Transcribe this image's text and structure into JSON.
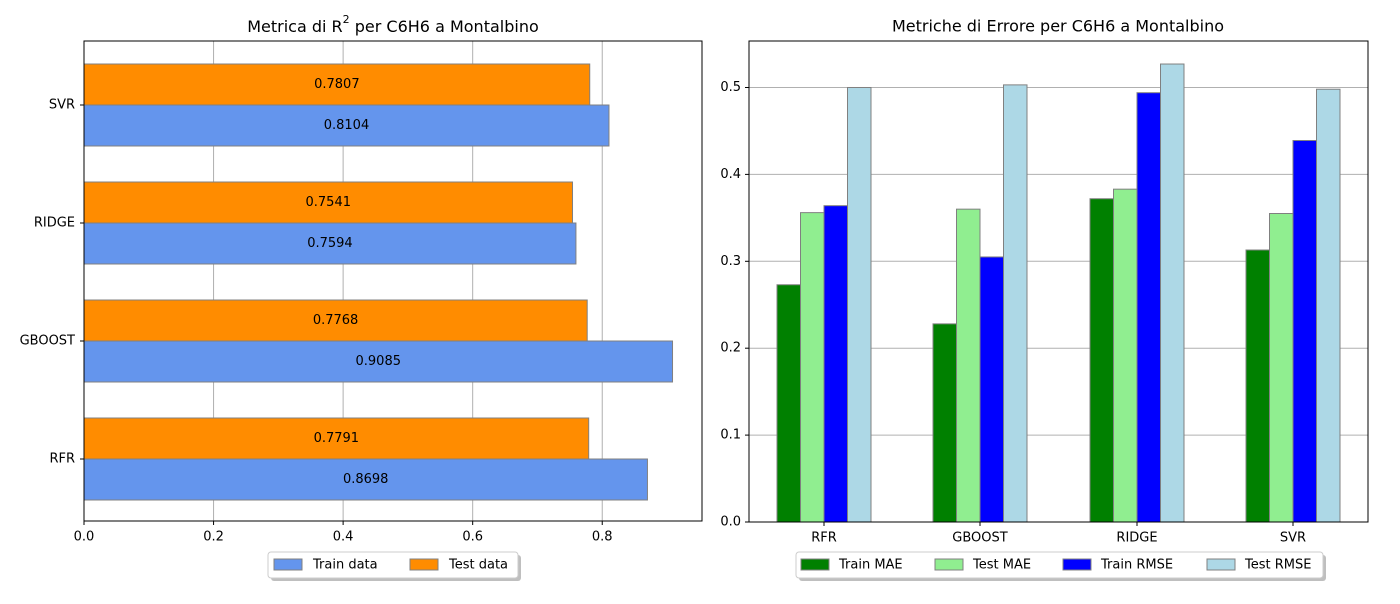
{
  "chart_data": [
    {
      "type": "bar",
      "orientation": "horizontal",
      "title": "Metrica di R² per C6H6 a Montalbino",
      "title_parts": [
        "Metrica di R",
        "2",
        " per C6H6 a Montalbino"
      ],
      "categories": [
        "RFR",
        "GBOOST",
        "RIDGE",
        "SVR"
      ],
      "series": [
        {
          "name": "Train data",
          "values": [
            0.8698,
            0.9085,
            0.7594,
            0.8104
          ],
          "color": "#6495ED"
        },
        {
          "name": "Test data",
          "values": [
            0.7791,
            0.7768,
            0.7541,
            0.7807
          ],
          "color": "#FF8C00"
        }
      ],
      "data_labels": [
        [
          "0.8698",
          "0.9085",
          "0.7594",
          "0.8104"
        ],
        [
          "0.7791",
          "0.7768",
          "0.7541",
          "0.7807"
        ]
      ],
      "xlim": [
        0,
        0.954
      ],
      "xticks": [
        0.0,
        0.2,
        0.4,
        0.6,
        0.8
      ],
      "xtick_labels": [
        "0.0",
        "0.2",
        "0.4",
        "0.6",
        "0.8"
      ],
      "grid": "x-axis",
      "legend": "below"
    },
    {
      "type": "bar",
      "orientation": "vertical",
      "title": "Metriche di Errore per C6H6 a Montalbino",
      "categories": [
        "RFR",
        "GBOOST",
        "RIDGE",
        "SVR"
      ],
      "series": [
        {
          "name": "Train MAE",
          "values": [
            0.273,
            0.228,
            0.372,
            0.313
          ],
          "color": "#008000"
        },
        {
          "name": "Test MAE",
          "values": [
            0.356,
            0.36,
            0.383,
            0.355
          ],
          "color": "#90EE90"
        },
        {
          "name": "Train RMSE",
          "values": [
            0.364,
            0.305,
            0.494,
            0.439
          ],
          "color": "#0000FF"
        },
        {
          "name": "Test RMSE",
          "values": [
            0.5,
            0.503,
            0.527,
            0.498
          ],
          "color": "#ADD8E6"
        }
      ],
      "ylim": [
        0,
        0.5535
      ],
      "yticks": [
        0.0,
        0.1,
        0.2,
        0.3,
        0.4,
        0.5
      ],
      "ytick_labels": [
        "0.0",
        "0.1",
        "0.2",
        "0.3",
        "0.4",
        "0.5"
      ],
      "grid": "y-axis",
      "legend": "below"
    }
  ]
}
